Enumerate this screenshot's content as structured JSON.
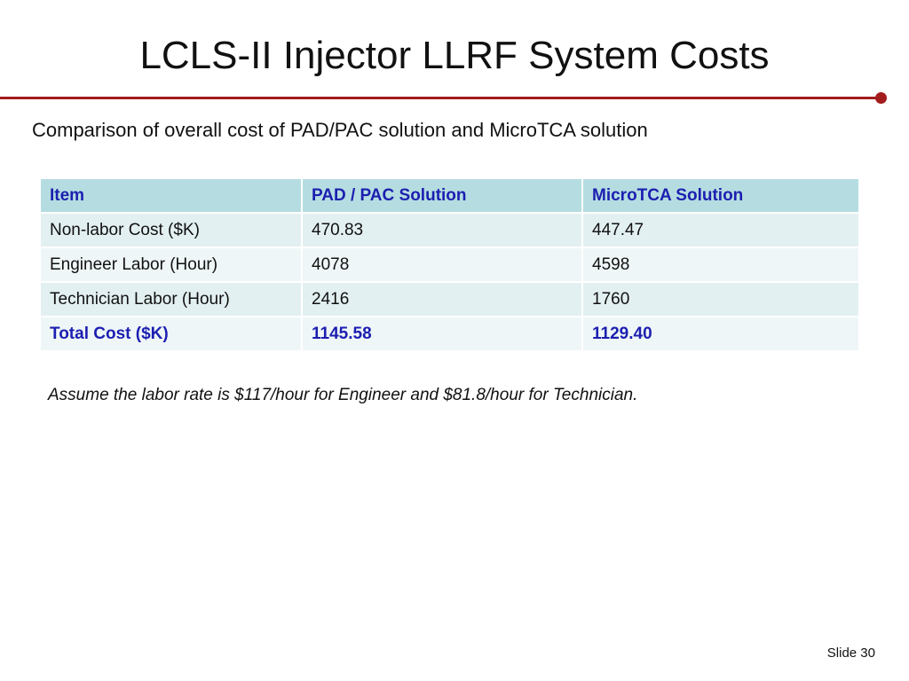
{
  "slide": {
    "title": "LCLS-II Injector LLRF System Costs",
    "subtitle": "Comparison of overall cost of PAD/PAC solution and MicroTCA solution",
    "note": "Assume the labor rate is $117/hour for Engineer and $81.8/hour for Technician.",
    "slide_number": "Slide 30",
    "accent_color": "#a31c1c"
  },
  "table": {
    "headers": [
      "Item",
      "PAD / PAC Solution",
      "MicroTCA Solution"
    ],
    "rows": [
      [
        "Non-labor Cost ($K)",
        "470.83",
        "447.47"
      ],
      [
        "Engineer Labor (Hour)",
        "4078",
        "4598"
      ],
      [
        "Technician Labor (Hour)",
        "2416",
        "1760"
      ],
      [
        "Total Cost ($K)",
        "1145.58",
        "1129.40"
      ]
    ],
    "header_bg": "#b5dde1",
    "highlight_color": "#1c1fb0"
  }
}
